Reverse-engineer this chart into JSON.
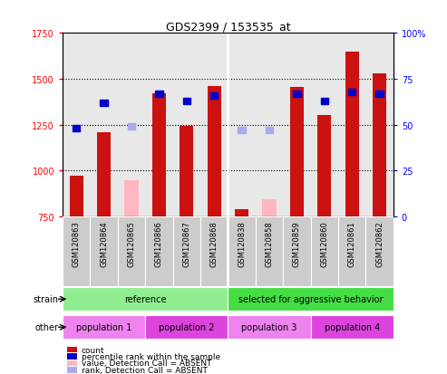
{
  "title": "GDS2399 / 153535_at",
  "samples": [
    "GSM120863",
    "GSM120864",
    "GSM120865",
    "GSM120866",
    "GSM120867",
    "GSM120868",
    "GSM120838",
    "GSM120858",
    "GSM120859",
    "GSM120860",
    "GSM120861",
    "GSM120862"
  ],
  "count_values": [
    970,
    1210,
    null,
    1420,
    1245,
    1460,
    790,
    null,
    1455,
    1305,
    1650,
    1530
  ],
  "count_absent": [
    null,
    null,
    950,
    null,
    null,
    null,
    null,
    845,
    null,
    null,
    null,
    null
  ],
  "percentile_present": [
    48,
    62,
    null,
    67,
    63,
    66,
    null,
    null,
    67,
    63,
    68,
    67
  ],
  "percentile_absent": [
    null,
    null,
    49,
    null,
    null,
    null,
    47,
    47,
    null,
    null,
    null,
    null
  ],
  "ylim_left": [
    750,
    1750
  ],
  "ylim_right": [
    0,
    100
  ],
  "yticks_left": [
    750,
    1000,
    1250,
    1500,
    1750
  ],
  "yticks_right": [
    0,
    25,
    50,
    75,
    100
  ],
  "strain_groups": [
    {
      "label": "reference",
      "start": 0,
      "end": 6,
      "color": "#90EE90"
    },
    {
      "label": "selected for aggressive behavior",
      "start": 6,
      "end": 12,
      "color": "#44DD44"
    }
  ],
  "other_groups": [
    {
      "label": "population 1",
      "start": 0,
      "end": 3,
      "color": "#EE82EE"
    },
    {
      "label": "population 2",
      "start": 3,
      "end": 6,
      "color": "#DD44DD"
    },
    {
      "label": "population 3",
      "start": 6,
      "end": 9,
      "color": "#EE82EE"
    },
    {
      "label": "population 4",
      "start": 9,
      "end": 12,
      "color": "#DD44DD"
    }
  ],
  "count_color": "#CC1111",
  "count_absent_color": "#FFB6C1",
  "percentile_color": "#0000CC",
  "percentile_absent_color": "#AAAAEE",
  "plot_bg_color": "#E8E8E8",
  "label_bg_color": "#CCCCCC"
}
